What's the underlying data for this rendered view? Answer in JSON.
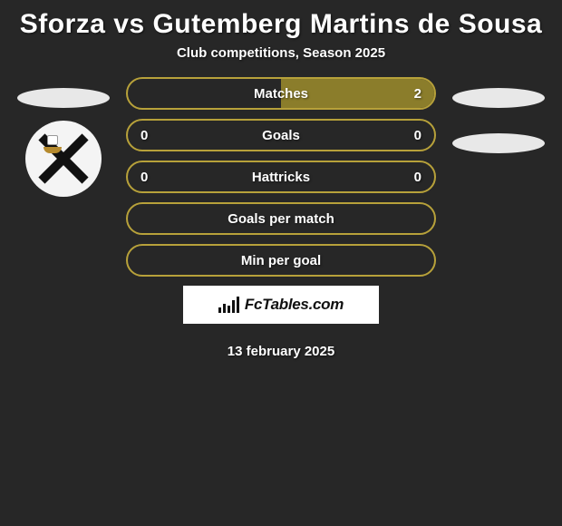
{
  "title": "Sforza vs Gutemberg Martins de Sousa",
  "subtitle": "Club competitions, Season 2025",
  "pill_border_color": "#b7a13a",
  "pill_fill_color": "#8b7d2b",
  "pill_text_color": "#ffffff",
  "background_color": "#272727",
  "ellipse_color": "#e8e8e8",
  "rows": [
    {
      "label": "Matches",
      "left": "",
      "right": "2",
      "left_fill_pct": 0,
      "right_fill_pct": 100
    },
    {
      "label": "Goals",
      "left": "0",
      "right": "0",
      "left_fill_pct": 0,
      "right_fill_pct": 0
    },
    {
      "label": "Hattricks",
      "left": "0",
      "right": "0",
      "left_fill_pct": 0,
      "right_fill_pct": 0
    },
    {
      "label": "Goals per match",
      "left": "",
      "right": "",
      "left_fill_pct": 0,
      "right_fill_pct": 0
    },
    {
      "label": "Min per goal",
      "left": "",
      "right": "",
      "left_fill_pct": 0,
      "right_fill_pct": 0
    }
  ],
  "footer_brand": "FcTables.com",
  "date": "13 february 2025",
  "left_side": {
    "show_ellipse": true,
    "show_badge": true
  },
  "right_side": {
    "show_ellipse1": true,
    "show_ellipse2": true
  }
}
